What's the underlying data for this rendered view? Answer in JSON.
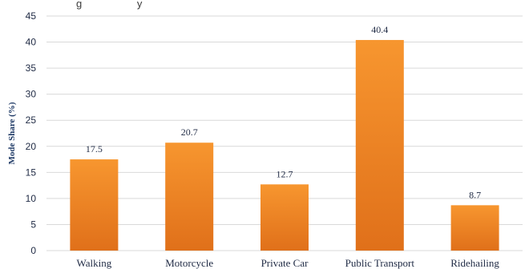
{
  "header": {
    "partial_caption": "g                   y"
  },
  "chart_data": {
    "type": "bar",
    "categories": [
      "Walking",
      "Motorcycle",
      "Private Car",
      "Public Transport",
      "Ridehailing"
    ],
    "values": [
      17.5,
      20.7,
      12.7,
      40.4,
      8.7
    ],
    "data_labels": [
      "17.5",
      "20.7",
      "12.7",
      "40.4",
      "8.7"
    ],
    "ylabel": "Mode Share (%)",
    "xlabel": "",
    "ylim": [
      0,
      45
    ],
    "yticks": [
      0,
      5,
      10,
      15,
      20,
      25,
      30,
      35,
      40,
      45
    ],
    "grid": true,
    "legend": "none",
    "colors": {
      "bar_top": "#f7962f",
      "bar_bottom": "#e0701a",
      "gridline": "#d9d9d9",
      "text": "#1f2a44",
      "axis_title": "#1f3a66"
    }
  }
}
